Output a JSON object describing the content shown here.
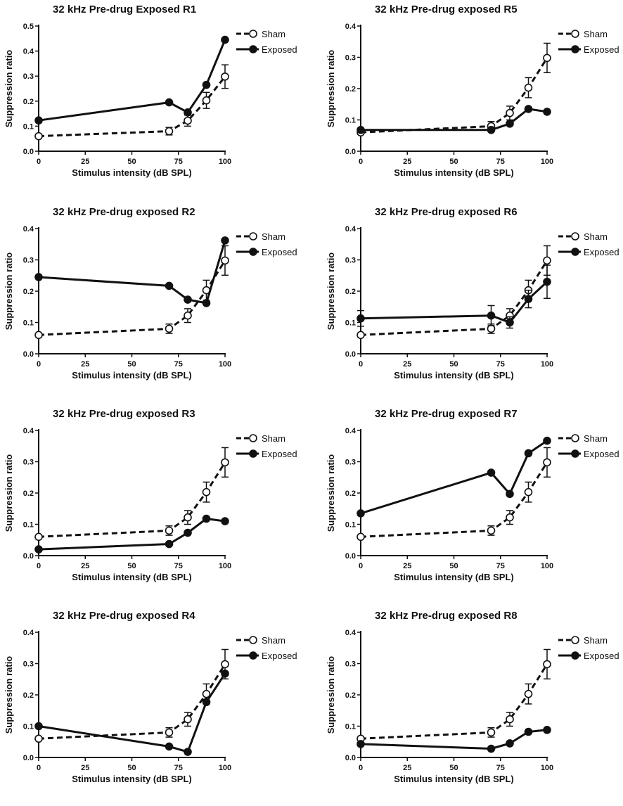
{
  "figure": {
    "styles": {
      "sham_line": "dashed",
      "exposed_line": "solid",
      "sham_marker": "open-circle",
      "exposed_marker": "filled-circle",
      "color": "#111111"
    }
  },
  "chart_data": [
    {
      "type": "line",
      "title": "32 kHz Pre-drug Exposed R1",
      "xlabel": "Stimulus intensity (dB SPL)",
      "ylabel": "Suppression ratio",
      "xlim": [
        0,
        100
      ],
      "xticks": [
        0,
        25,
        50,
        75,
        100
      ],
      "xtick_labels": [
        "0",
        "25",
        "50",
        "75",
        "100"
      ],
      "ylim": [
        0,
        0.5
      ],
      "yticks": [
        0,
        0.1,
        0.2,
        0.3,
        0.4,
        0.5
      ],
      "ytick_labels": [
        "0.0",
        "0.1",
        "0.2",
        "0.3",
        "0.4",
        "0.5"
      ],
      "legend": "top-right",
      "series": [
        {
          "name": "Sham",
          "x": [
            0,
            70,
            80,
            90,
            100
          ],
          "values": [
            0.06,
            0.08,
            0.122,
            0.203,
            0.298
          ],
          "err": [
            0,
            0.015,
            0.022,
            0.032,
            0.047
          ]
        },
        {
          "name": "Exposed",
          "x": [
            0,
            70,
            80,
            90,
            100
          ],
          "values": [
            0.123,
            0.195,
            0.155,
            0.265,
            0.445
          ]
        }
      ]
    },
    {
      "type": "line",
      "title": "32 kHz Pre-drug exposed R5",
      "xlabel": "Stimulus intensity (dB SPL)",
      "ylabel": "Suppression ratio",
      "xlim": [
        0,
        100
      ],
      "xticks": [
        0,
        25,
        50,
        75,
        100
      ],
      "xtick_labels": [
        "0",
        "25",
        "50",
        "75",
        "100"
      ],
      "ylim": [
        0,
        0.4
      ],
      "yticks": [
        0,
        0.1,
        0.2,
        0.3,
        0.4
      ],
      "ytick_labels": [
        "0.0",
        "0.1",
        "0.2",
        "0.3",
        "0.4"
      ],
      "legend": "top-right",
      "series": [
        {
          "name": "Sham",
          "x": [
            0,
            70,
            80,
            90,
            100
          ],
          "values": [
            0.06,
            0.08,
            0.122,
            0.203,
            0.298
          ],
          "err": [
            0,
            0.015,
            0.022,
            0.032,
            0.047
          ]
        },
        {
          "name": "Exposed",
          "x": [
            0,
            70,
            80,
            90,
            100
          ],
          "values": [
            0.068,
            0.068,
            0.088,
            0.135,
            0.126
          ]
        }
      ]
    },
    {
      "type": "line",
      "title": "32 kHz Pre-drug exposed R2",
      "xlabel": "Stimulus intensity (dB SPL)",
      "ylabel": "Suppression ratio",
      "xlim": [
        0,
        100
      ],
      "xticks": [
        0,
        25,
        50,
        75,
        100
      ],
      "xtick_labels": [
        "0",
        "25",
        "50",
        "75",
        "100"
      ],
      "ylim": [
        0,
        0.4
      ],
      "yticks": [
        0,
        0.1,
        0.2,
        0.3,
        0.4
      ],
      "ytick_labels": [
        "0.0",
        "0.1",
        "0.2",
        "0.3",
        "0.4"
      ],
      "legend": "top-right",
      "series": [
        {
          "name": "Sham",
          "x": [
            0,
            70,
            80,
            90,
            100
          ],
          "values": [
            0.06,
            0.08,
            0.122,
            0.203,
            0.298
          ],
          "err": [
            0,
            0.015,
            0.022,
            0.032,
            0.047
          ]
        },
        {
          "name": "Exposed",
          "x": [
            0,
            70,
            80,
            90,
            100
          ],
          "values": [
            0.245,
            0.217,
            0.173,
            0.162,
            0.362
          ]
        }
      ]
    },
    {
      "type": "line",
      "title": "32 kHz Pre-drug exposed R6",
      "xlabel": "Stimulus intensity (dB SPL)",
      "ylabel": "Suppression ratio",
      "xlim": [
        0,
        100
      ],
      "xticks": [
        0,
        25,
        50,
        75,
        100
      ],
      "xtick_labels": [
        "0",
        "25",
        "50",
        "75",
        "100"
      ],
      "ylim": [
        0,
        0.4
      ],
      "yticks": [
        0,
        0.1,
        0.2,
        0.3,
        0.4
      ],
      "ytick_labels": [
        "0.0",
        "0.1",
        "0.2",
        "0.3",
        "0.4"
      ],
      "legend": "top-right",
      "series": [
        {
          "name": "Sham",
          "x": [
            0,
            70,
            80,
            90,
            100
          ],
          "values": [
            0.06,
            0.08,
            0.122,
            0.203,
            0.298
          ],
          "err": [
            0,
            0.015,
            0.022,
            0.032,
            0.047
          ]
        },
        {
          "name": "Exposed",
          "x": [
            0,
            70,
            80,
            90,
            100
          ],
          "values": [
            0.113,
            0.122,
            0.1,
            0.175,
            0.23
          ],
          "err": [
            0.025,
            0.032,
            0.018,
            0.028,
            0.053
          ]
        }
      ]
    },
    {
      "type": "line",
      "title": "32 kHz Pre-drug exposed R3",
      "xlabel": "Stimulus intensity (dB SPL)",
      "ylabel": "Suppression ratio",
      "xlim": [
        0,
        100
      ],
      "xticks": [
        0,
        25,
        50,
        75,
        100
      ],
      "xtick_labels": [
        "0",
        "25",
        "50",
        "75",
        "100"
      ],
      "ylim": [
        0,
        0.4
      ],
      "yticks": [
        0,
        0.1,
        0.2,
        0.3,
        0.4
      ],
      "ytick_labels": [
        "0.0",
        "0.1",
        "0.2",
        "0.3",
        "0.4"
      ],
      "legend": "top-right",
      "series": [
        {
          "name": "Sham",
          "x": [
            0,
            70,
            80,
            90,
            100
          ],
          "values": [
            0.06,
            0.08,
            0.122,
            0.203,
            0.298
          ],
          "err": [
            0,
            0.015,
            0.022,
            0.032,
            0.047
          ]
        },
        {
          "name": "Exposed",
          "x": [
            0,
            70,
            80,
            90,
            100
          ],
          "values": [
            0.02,
            0.037,
            0.073,
            0.118,
            0.11
          ]
        }
      ]
    },
    {
      "type": "line",
      "title": "32 kHz Pre-drug exposed R7",
      "xlabel": "Stimulus intensity (dB SPL)",
      "ylabel": "Suppression ratio",
      "xlim": [
        0,
        100
      ],
      "xticks": [
        0,
        25,
        50,
        75,
        100
      ],
      "xtick_labels": [
        "0",
        "25",
        "50",
        "75",
        "100"
      ],
      "ylim": [
        0,
        0.4
      ],
      "yticks": [
        0,
        0.1,
        0.2,
        0.3,
        0.4
      ],
      "ytick_labels": [
        "0.0",
        "0.1",
        "0.2",
        "0.3",
        "0.4"
      ],
      "legend": "top-right",
      "series": [
        {
          "name": "Sham",
          "x": [
            0,
            70,
            80,
            90,
            100
          ],
          "values": [
            0.06,
            0.08,
            0.122,
            0.203,
            0.298
          ],
          "err": [
            0,
            0.015,
            0.022,
            0.032,
            0.047
          ]
        },
        {
          "name": "Exposed",
          "x": [
            0,
            70,
            80,
            90,
            100
          ],
          "values": [
            0.135,
            0.265,
            0.197,
            0.327,
            0.367
          ]
        }
      ]
    },
    {
      "type": "line",
      "title": "32 kHz Pre-drug exposed R4",
      "xlabel": "Stimulus intensity (dB SPL)",
      "ylabel": "Suppression ratio",
      "xlim": [
        0,
        100
      ],
      "xticks": [
        0,
        25,
        50,
        75,
        100
      ],
      "xtick_labels": [
        "0",
        "25",
        "50",
        "75",
        "100"
      ],
      "ylim": [
        0,
        0.4
      ],
      "yticks": [
        0,
        0.1,
        0.2,
        0.3,
        0.4
      ],
      "ytick_labels": [
        "0.0",
        "0.1",
        "0.2",
        "0.3",
        "0.4"
      ],
      "legend": "top-right",
      "series": [
        {
          "name": "Sham",
          "x": [
            0,
            70,
            80,
            90,
            100
          ],
          "values": [
            0.06,
            0.08,
            0.122,
            0.203,
            0.298
          ],
          "err": [
            0,
            0.015,
            0.022,
            0.032,
            0.047
          ]
        },
        {
          "name": "Exposed",
          "x": [
            0,
            70,
            80,
            90,
            100
          ],
          "values": [
            0.1,
            0.035,
            0.018,
            0.177,
            0.268
          ]
        }
      ]
    },
    {
      "type": "line",
      "title": "32 kHz Pre-drug exposed R8",
      "xlabel": "Stimulus intensity (dB SPL)",
      "ylabel": "Suppression ratio",
      "xlim": [
        0,
        100
      ],
      "xticks": [
        0,
        25,
        50,
        75,
        100
      ],
      "xtick_labels": [
        "0",
        "25",
        "50",
        "75",
        "100"
      ],
      "ylim": [
        0,
        0.4
      ],
      "yticks": [
        0,
        0.1,
        0.2,
        0.3,
        0.4
      ],
      "ytick_labels": [
        "0.0",
        "0.1",
        "0.2",
        "0.3",
        "0.4"
      ],
      "legend": "top-right",
      "series": [
        {
          "name": "Sham",
          "x": [
            0,
            70,
            80,
            90,
            100
          ],
          "values": [
            0.06,
            0.08,
            0.122,
            0.203,
            0.298
          ],
          "err": [
            0,
            0.015,
            0.022,
            0.032,
            0.047
          ]
        },
        {
          "name": "Exposed",
          "x": [
            0,
            70,
            80,
            90,
            100
          ],
          "values": [
            0.043,
            0.028,
            0.045,
            0.082,
            0.088
          ]
        }
      ]
    }
  ]
}
